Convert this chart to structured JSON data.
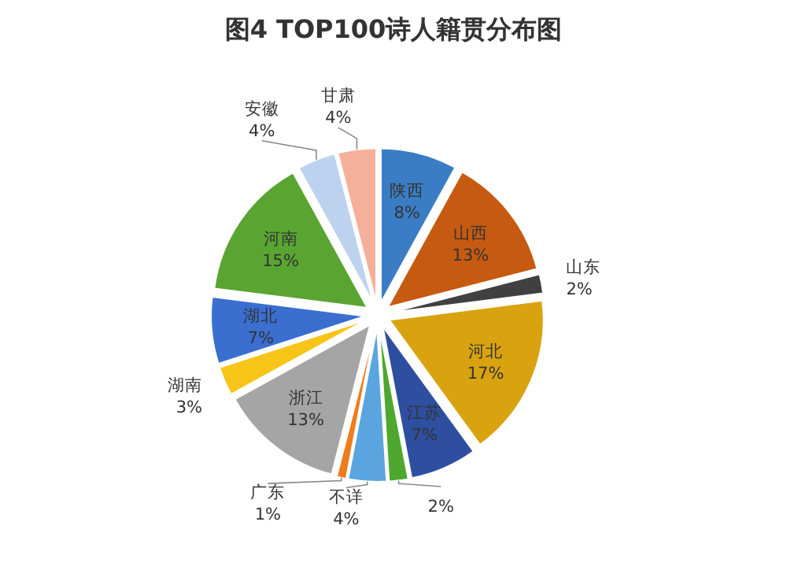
{
  "chart_data": {
    "type": "pie",
    "title": "图4  TOP100诗人籍贯分布图",
    "categories": [
      "陕西",
      "山西",
      "山东",
      "河北",
      "江苏",
      null,
      "不详",
      "广东",
      "浙江",
      "湖南",
      "湖北",
      "河南",
      "安徽",
      "甘肃"
    ],
    "values": [
      8,
      13,
      2,
      17,
      7,
      2,
      4,
      1,
      13,
      3,
      7,
      15,
      4,
      4
    ],
    "colors": [
      "#3b7dc4",
      "#c65a11",
      "#404040",
      "#d9a30f",
      "#2e4fa0",
      "#4ea72e",
      "#5aa5e0",
      "#f07c1c",
      "#a5a5a5",
      "#f7c518",
      "#3a6fd0",
      "#5aa532",
      "#bdd2ee",
      "#f4b09a"
    ],
    "value_labels": [
      "8%",
      "13%",
      "2%",
      "17%",
      "7%",
      "2%",
      "4%",
      "1%",
      "13%",
      "3%",
      "7%",
      "15%",
      "4%",
      "4%"
    ],
    "legend": false
  }
}
